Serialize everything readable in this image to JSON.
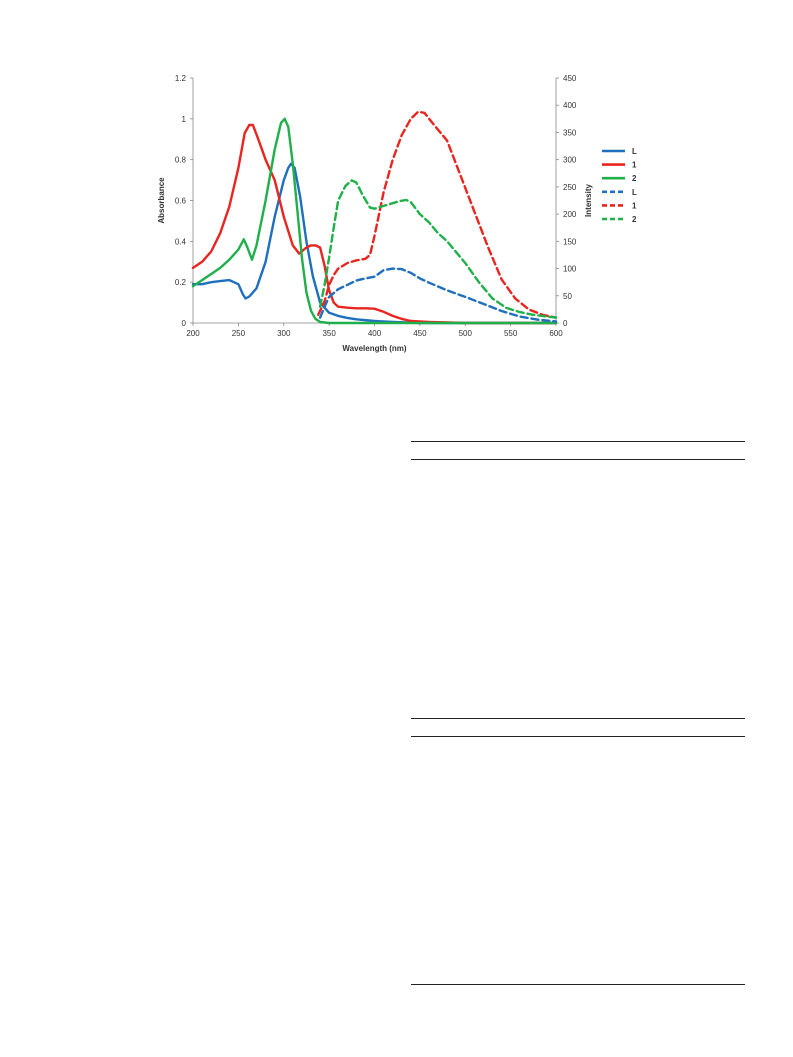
{
  "chart_data": {
    "type": "line",
    "x_axis": {
      "label": "Wavelength (nm)",
      "range": [
        200,
        600
      ],
      "ticks": [
        "200",
        "250",
        "300",
        "350",
        "400",
        "450",
        "500",
        "550",
        "600"
      ]
    },
    "y_axis_left": {
      "label": "Absorbance",
      "range": [
        0,
        1.2
      ],
      "ticks": [
        "0",
        "0.2",
        "0.4",
        "0.6",
        "0.8",
        "1",
        "1.2"
      ]
    },
    "y_axis_right": {
      "label": "Intensity",
      "range": [
        0,
        450
      ],
      "ticks": [
        "0",
        "50",
        "100",
        "150",
        "200",
        "250",
        "300",
        "350",
        "400",
        "450"
      ]
    },
    "grid": false,
    "legend_position": "right",
    "series": [
      {
        "name": "L",
        "axis": "left",
        "style": "solid",
        "color": "#1f6fbf",
        "points": [
          [
            200,
            0.19
          ],
          [
            210,
            0.19
          ],
          [
            220,
            0.2
          ],
          [
            230,
            0.205
          ],
          [
            240,
            0.21
          ],
          [
            250,
            0.19
          ],
          [
            255,
            0.14
          ],
          [
            258,
            0.12
          ],
          [
            262,
            0.13
          ],
          [
            270,
            0.17
          ],
          [
            280,
            0.3
          ],
          [
            290,
            0.52
          ],
          [
            300,
            0.7
          ],
          [
            305,
            0.76
          ],
          [
            308,
            0.78
          ],
          [
            312,
            0.76
          ],
          [
            318,
            0.62
          ],
          [
            325,
            0.4
          ],
          [
            332,
            0.23
          ],
          [
            340,
            0.1
          ],
          [
            350,
            0.05
          ],
          [
            360,
            0.035
          ],
          [
            370,
            0.025
          ],
          [
            380,
            0.018
          ],
          [
            400,
            0.01
          ],
          [
            420,
            0.005
          ],
          [
            450,
            0.0
          ],
          [
            600,
            0.0
          ]
        ]
      },
      {
        "name": "1",
        "axis": "left",
        "style": "solid",
        "color": "#e8251f",
        "points": [
          [
            200,
            0.27
          ],
          [
            210,
            0.3
          ],
          [
            220,
            0.35
          ],
          [
            230,
            0.44
          ],
          [
            240,
            0.57
          ],
          [
            250,
            0.76
          ],
          [
            257,
            0.93
          ],
          [
            262,
            0.97
          ],
          [
            266,
            0.97
          ],
          [
            272,
            0.9
          ],
          [
            280,
            0.8
          ],
          [
            290,
            0.7
          ],
          [
            300,
            0.52
          ],
          [
            310,
            0.38
          ],
          [
            317,
            0.34
          ],
          [
            325,
            0.37
          ],
          [
            330,
            0.38
          ],
          [
            335,
            0.38
          ],
          [
            340,
            0.37
          ],
          [
            345,
            0.28
          ],
          [
            350,
            0.16
          ],
          [
            355,
            0.1
          ],
          [
            360,
            0.08
          ],
          [
            370,
            0.075
          ],
          [
            380,
            0.072
          ],
          [
            390,
            0.072
          ],
          [
            400,
            0.07
          ],
          [
            410,
            0.055
          ],
          [
            420,
            0.035
          ],
          [
            430,
            0.02
          ],
          [
            440,
            0.01
          ],
          [
            460,
            0.005
          ],
          [
            500,
            0.0
          ],
          [
            600,
            0.0
          ]
        ]
      },
      {
        "name": "2",
        "axis": "left",
        "style": "solid",
        "color": "#1fb04a",
        "points": [
          [
            200,
            0.18
          ],
          [
            210,
            0.21
          ],
          [
            220,
            0.24
          ],
          [
            230,
            0.27
          ],
          [
            240,
            0.31
          ],
          [
            250,
            0.36
          ],
          [
            256,
            0.41
          ],
          [
            260,
            0.37
          ],
          [
            265,
            0.31
          ],
          [
            270,
            0.38
          ],
          [
            280,
            0.6
          ],
          [
            290,
            0.85
          ],
          [
            297,
            0.98
          ],
          [
            301,
            1.0
          ],
          [
            305,
            0.96
          ],
          [
            310,
            0.78
          ],
          [
            315,
            0.55
          ],
          [
            320,
            0.32
          ],
          [
            325,
            0.15
          ],
          [
            330,
            0.06
          ],
          [
            335,
            0.02
          ],
          [
            340,
            0.005
          ],
          [
            350,
            0.0
          ],
          [
            600,
            0.0
          ]
        ]
      },
      {
        "name": "L",
        "axis": "right",
        "style": "dashed",
        "color": "#1f6fbf",
        "points": [
          [
            340,
            10
          ],
          [
            345,
            30
          ],
          [
            350,
            48
          ],
          [
            355,
            55
          ],
          [
            360,
            62
          ],
          [
            370,
            70
          ],
          [
            380,
            78
          ],
          [
            390,
            82
          ],
          [
            400,
            85
          ],
          [
            410,
            97
          ],
          [
            420,
            100
          ],
          [
            430,
            99
          ],
          [
            440,
            92
          ],
          [
            450,
            82
          ],
          [
            460,
            74
          ],
          [
            480,
            60
          ],
          [
            500,
            48
          ],
          [
            520,
            35
          ],
          [
            540,
            22
          ],
          [
            560,
            12
          ],
          [
            580,
            6
          ],
          [
            600,
            3
          ]
        ]
      },
      {
        "name": "1",
        "axis": "right",
        "style": "dashed",
        "color": "#e8251f",
        "points": [
          [
            338,
            15
          ],
          [
            345,
            40
          ],
          [
            350,
            70
          ],
          [
            355,
            88
          ],
          [
            360,
            100
          ],
          [
            370,
            110
          ],
          [
            380,
            115
          ],
          [
            390,
            118
          ],
          [
            395,
            125
          ],
          [
            400,
            160
          ],
          [
            410,
            240
          ],
          [
            420,
            300
          ],
          [
            430,
            345
          ],
          [
            440,
            375
          ],
          [
            448,
            388
          ],
          [
            455,
            386
          ],
          [
            465,
            365
          ],
          [
            480,
            335
          ],
          [
            495,
            270
          ],
          [
            510,
            205
          ],
          [
            525,
            140
          ],
          [
            540,
            80
          ],
          [
            555,
            45
          ],
          [
            570,
            25
          ],
          [
            585,
            15
          ],
          [
            600,
            10
          ]
        ]
      },
      {
        "name": "2",
        "axis": "right",
        "style": "dashed",
        "color": "#1fb04a",
        "points": [
          [
            340,
            30
          ],
          [
            345,
            70
          ],
          [
            350,
            120
          ],
          [
            355,
            175
          ],
          [
            360,
            225
          ],
          [
            368,
            252
          ],
          [
            375,
            262
          ],
          [
            380,
            258
          ],
          [
            387,
            235
          ],
          [
            395,
            212
          ],
          [
            400,
            210
          ],
          [
            410,
            215
          ],
          [
            420,
            220
          ],
          [
            428,
            224
          ],
          [
            435,
            226
          ],
          [
            440,
            222
          ],
          [
            450,
            200
          ],
          [
            460,
            185
          ],
          [
            470,
            165
          ],
          [
            480,
            150
          ],
          [
            490,
            130
          ],
          [
            500,
            110
          ],
          [
            515,
            75
          ],
          [
            530,
            45
          ],
          [
            545,
            28
          ],
          [
            560,
            20
          ],
          [
            575,
            15
          ],
          [
            590,
            12
          ],
          [
            600,
            10
          ]
        ]
      }
    ]
  }
}
